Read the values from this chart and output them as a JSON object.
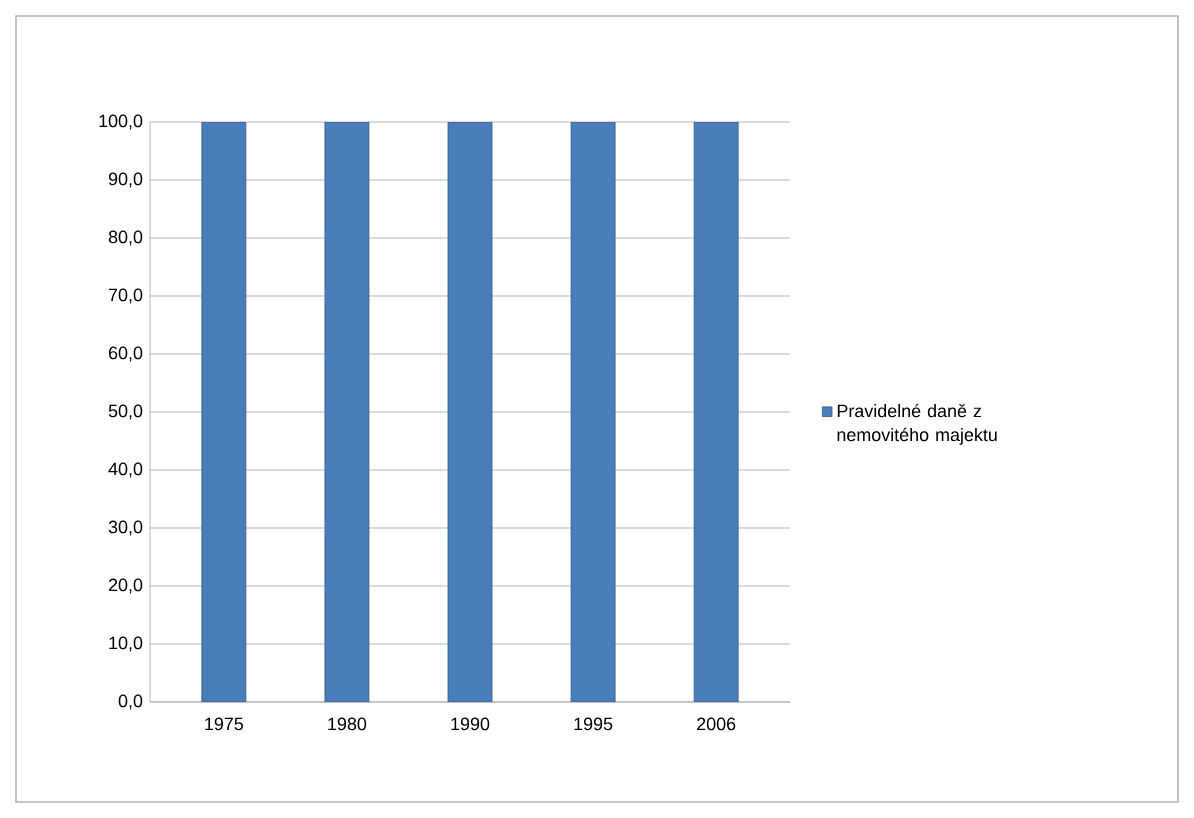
{
  "chart_data": {
    "type": "bar",
    "categories": [
      "1975",
      "1980",
      "1990",
      "1995",
      "2006"
    ],
    "series": [
      {
        "name": "Pravidelné daně z nemovitého majektu",
        "color": "#4a7ebb",
        "values": [
          100,
          100,
          100,
          100,
          100
        ]
      }
    ],
    "ylim": [
      0,
      100
    ],
    "yticks": [
      {
        "value": 0,
        "label": "0,0"
      },
      {
        "value": 10,
        "label": "10,0"
      },
      {
        "value": 20,
        "label": "20,0"
      },
      {
        "value": 30,
        "label": "30,0"
      },
      {
        "value": 40,
        "label": "40,0"
      },
      {
        "value": 50,
        "label": "50,0"
      },
      {
        "value": 60,
        "label": "60,0"
      },
      {
        "value": 70,
        "label": "70,0"
      },
      {
        "value": 80,
        "label": "80,0"
      },
      {
        "value": 90,
        "label": "90,0"
      },
      {
        "value": 100,
        "label": "100,0"
      }
    ],
    "grid": "y",
    "legend": "right"
  }
}
